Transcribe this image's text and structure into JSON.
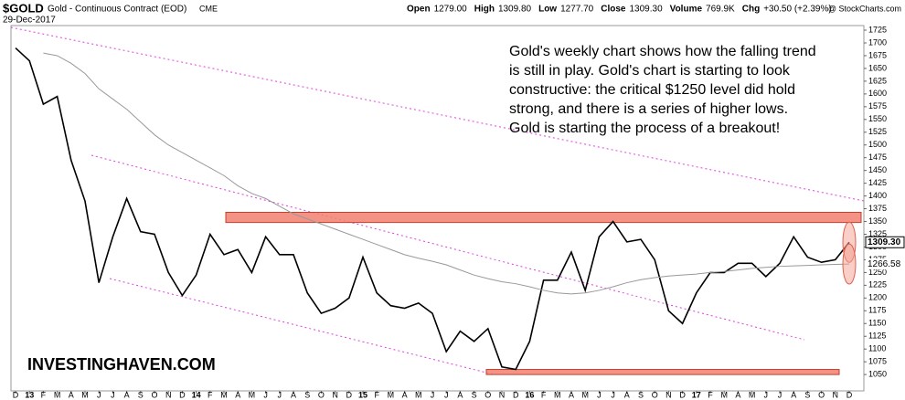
{
  "chart_data": {
    "type": "line",
    "title": "$GOLD",
    "subtitle": "Gold - Continuous Contract (EOD)",
    "exchange": "CME",
    "date": "29-Dec-2017",
    "stats": [
      {
        "label": "Open",
        "value": "1279.00"
      },
      {
        "label": "High",
        "value": "1309.80"
      },
      {
        "label": "Low",
        "value": "1277.70"
      },
      {
        "label": "Close",
        "value": "1309.30"
      },
      {
        "label": "Volume",
        "value": "769.9K"
      },
      {
        "label": "Chg",
        "value": "+30.50 (+2.39%)"
      }
    ],
    "credit": "@ StockCharts.com",
    "annotation": [
      "Gold's weekly chart shows how the falling trend",
      "is still in play. Gold's chart is starting to look",
      "constructive: the critical $1250 level did hold",
      "strong, and there is a series of higher lows.",
      "Gold is starting the process of a breakout!"
    ],
    "watermark": "INVESTINGHAVEN.COM",
    "categories": [
      "D",
      "13",
      "F",
      "M",
      "A",
      "M",
      "J",
      "J",
      "A",
      "S",
      "O",
      "N",
      "D",
      "14",
      "F",
      "M",
      "A",
      "M",
      "J",
      "J",
      "A",
      "S",
      "O",
      "N",
      "D",
      "15",
      "F",
      "M",
      "A",
      "M",
      "J",
      "J",
      "A",
      "S",
      "O",
      "N",
      "D",
      "16",
      "F",
      "M",
      "A",
      "M",
      "J",
      "J",
      "A",
      "S",
      "O",
      "N",
      "D",
      "17",
      "F",
      "M",
      "A",
      "M",
      "J",
      "J",
      "A",
      "S",
      "O",
      "N",
      "D"
    ],
    "series": [
      {
        "name": "Price",
        "color": "#000000",
        "values": [
          1690,
          1665,
          1580,
          1595,
          1470,
          1390,
          1230,
          1320,
          1395,
          1330,
          1325,
          1250,
          1205,
          1245,
          1325,
          1285,
          1295,
          1250,
          1320,
          1285,
          1285,
          1210,
          1170,
          1180,
          1200,
          1280,
          1210,
          1185,
          1180,
          1190,
          1170,
          1095,
          1135,
          1115,
          1140,
          1065,
          1060,
          1115,
          1235,
          1235,
          1290,
          1215,
          1320,
          1350,
          1310,
          1315,
          1275,
          1175,
          1150,
          1210,
          1250,
          1250,
          1268,
          1268,
          1242,
          1268,
          1320,
          1280,
          1270,
          1275,
          1309.3
        ],
        "value_labels": [
          null,
          null,
          null,
          null,
          null,
          null,
          null,
          null,
          null,
          null,
          null,
          null,
          null,
          null,
          null,
          null,
          null,
          null,
          null,
          null,
          null,
          null,
          null,
          null,
          null,
          null,
          null,
          null,
          null,
          null,
          null,
          null,
          null,
          null,
          null,
          null,
          null,
          null,
          null,
          null,
          null,
          null,
          null,
          null,
          null,
          null,
          null,
          null,
          null,
          null,
          null,
          null,
          null,
          null,
          null,
          null,
          null,
          null,
          null,
          null,
          "1309.30"
        ]
      },
      {
        "name": "MA",
        "color": "#999999",
        "values": [
          null,
          null,
          1680,
          1675,
          1660,
          1640,
          1610,
          1590,
          1570,
          1545,
          1520,
          1500,
          1485,
          1470,
          1455,
          1440,
          1420,
          1405,
          1395,
          1380,
          1365,
          1355,
          1345,
          1335,
          1325,
          1315,
          1305,
          1295,
          1285,
          1278,
          1272,
          1265,
          1255,
          1245,
          1238,
          1232,
          1228,
          1222,
          1215,
          1210,
          1208,
          1210,
          1215,
          1222,
          1230,
          1236,
          1240,
          1243,
          1245,
          1247,
          1250,
          1252,
          1255,
          1258,
          1260,
          1262,
          1263,
          1264,
          1265,
          1266,
          1266.58
        ],
        "value_labels": [
          null,
          null,
          null,
          null,
          null,
          null,
          null,
          null,
          null,
          null,
          null,
          null,
          null,
          null,
          null,
          null,
          null,
          null,
          null,
          null,
          null,
          null,
          null,
          null,
          null,
          null,
          null,
          null,
          null,
          null,
          null,
          null,
          null,
          null,
          null,
          null,
          null,
          null,
          null,
          null,
          null,
          null,
          null,
          null,
          null,
          null,
          null,
          null,
          null,
          null,
          null,
          null,
          null,
          null,
          null,
          null,
          null,
          null,
          null,
          null,
          "1266.58"
        ]
      }
    ],
    "bands": [
      {
        "low": 1348,
        "high": 1368
      },
      {
        "low": 1050,
        "high": 1060
      }
    ],
    "ylim": [
      1018,
      1734
    ],
    "yticks": [
      1050,
      1075,
      1100,
      1125,
      1150,
      1175,
      1200,
      1225,
      1250,
      1275,
      1300,
      1325,
      1350,
      1375,
      1400,
      1425,
      1450,
      1475,
      1500,
      1525,
      1550,
      1575,
      1600,
      1625,
      1650,
      1675,
      1700,
      1725
    ],
    "grid": false
  }
}
